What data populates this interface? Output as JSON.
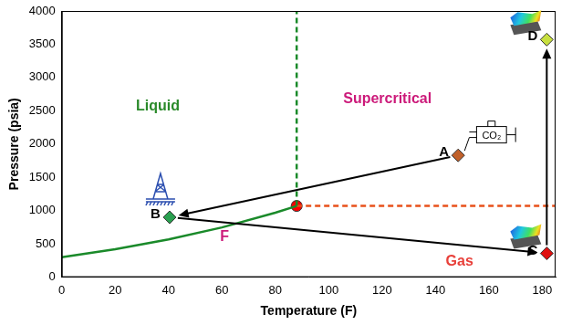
{
  "chart_data": {
    "type": "scatter",
    "x_label": "Temperature (F)",
    "y_label": "Pressure (psia)",
    "xlim": [
      0,
      185
    ],
    "ylim": [
      0,
      4000
    ],
    "xticks": [
      0,
      20,
      40,
      60,
      80,
      100,
      120,
      140,
      160,
      180
    ],
    "yticks": [
      0,
      500,
      1000,
      1500,
      2000,
      2500,
      3000,
      3500,
      4000
    ],
    "grid": false,
    "series": [
      {
        "type": "line",
        "color": "#1a8a2a",
        "line_style": "solid",
        "marker": "none",
        "x": [
          0,
          20,
          40,
          60,
          80,
          88
        ],
        "values": [
          300,
          421,
          567,
          747,
          969,
          1070
        ]
      },
      {
        "type": "line",
        "color": "#1a8a2a",
        "line_style": "dashed",
        "marker": "none",
        "x": [
          88,
          88
        ],
        "values": [
          1070,
          4000
        ]
      },
      {
        "type": "line",
        "color": "#e8501a",
        "line_style": "dashed",
        "marker": "none",
        "x": [
          88,
          185
        ],
        "values": [
          1070,
          1070
        ]
      },
      {
        "type": "scatter",
        "color": "#ff0000",
        "marker": "circle",
        "x": [
          88
        ],
        "values": [
          1070
        ]
      },
      {
        "type": "scatter",
        "color": "#c0602a",
        "marker": "diamond",
        "x": [
          148.5
        ],
        "values": [
          1830
        ],
        "point_labels": [
          "A"
        ]
      },
      {
        "type": "scatter",
        "color": "#2aa050",
        "marker": "diamond",
        "x": [
          40.4
        ],
        "values": [
          900
        ],
        "point_labels": [
          "B"
        ]
      },
      {
        "type": "scatter",
        "color": "#e01010",
        "marker": "diamond",
        "x": [
          181.7
        ],
        "values": [
          357
        ],
        "point_labels": [
          "C"
        ]
      },
      {
        "type": "scatter",
        "color": "#c8e040",
        "marker": "diamond",
        "x": [
          181.7
        ],
        "values": [
          3570
        ],
        "point_labels": [
          "D"
        ]
      }
    ],
    "arrows": [
      {
        "from": "A",
        "to": "B"
      },
      {
        "from": "B",
        "to": "C"
      },
      {
        "from": "C",
        "to": "D"
      }
    ],
    "annotations": [
      {
        "text": "Liquid",
        "x": 36,
        "y": 2570,
        "color": "#2a8a2a"
      },
      {
        "text": "Supercritical",
        "x": 122,
        "y": 2670,
        "color": "#cc1a7a"
      },
      {
        "text": "Gas",
        "x": 149,
        "y": 240,
        "color": "#e8403a"
      },
      {
        "text": "F",
        "x": 61,
        "y": 600,
        "color": "#cc1a7a"
      }
    ],
    "compressor_label": {
      "text": "CO₂",
      "x": 161,
      "y": 2140
    }
  }
}
